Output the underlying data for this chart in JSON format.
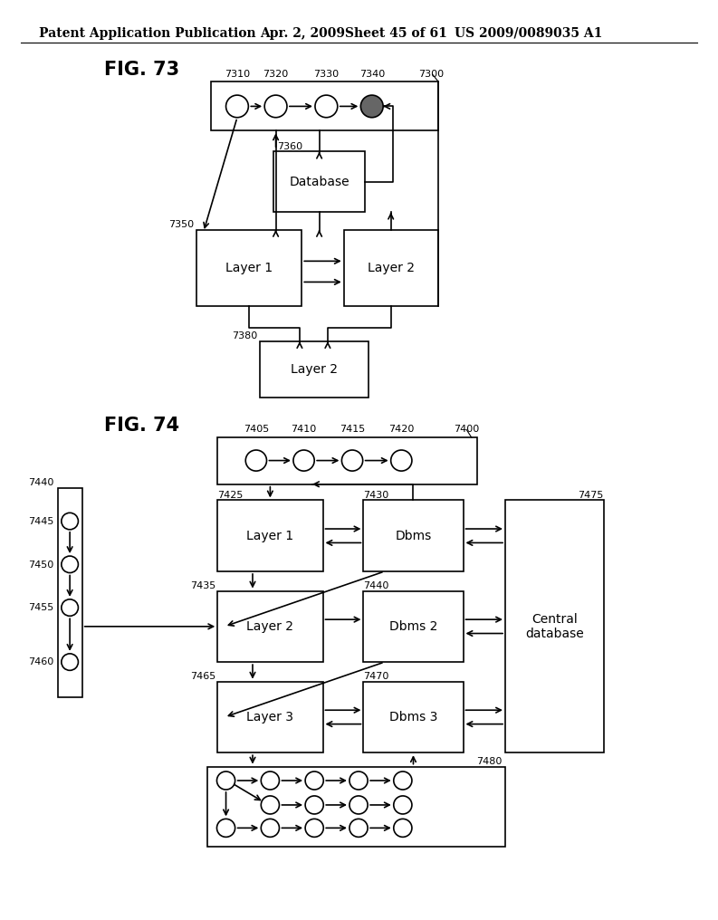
{
  "bg_color": "#ffffff",
  "header_text": "Patent Application Publication",
  "header_date": "Apr. 2, 2009",
  "header_sheet": "Sheet 45 of 61",
  "header_patent": "US 2009/0089035 A1",
  "fig73_label": "FIG. 73",
  "fig74_label": "FIG. 74",
  "lw": 1.2,
  "fs_body": 10,
  "fs_small": 8,
  "fs_fig": 15
}
